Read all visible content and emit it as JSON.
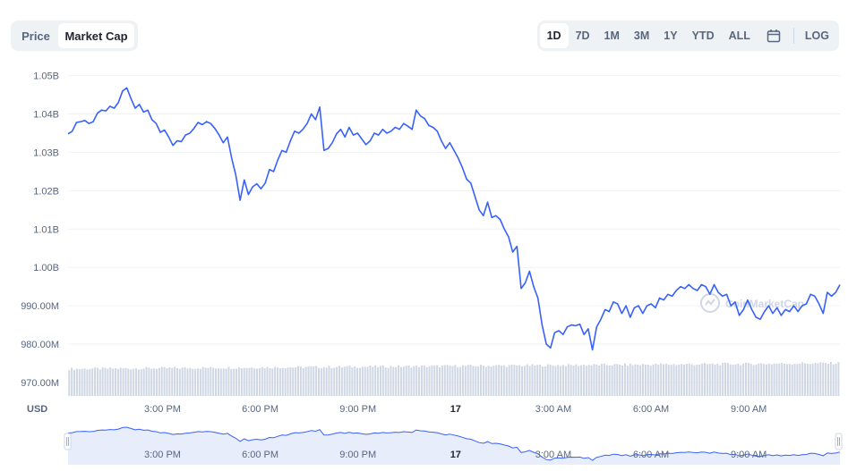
{
  "toggle": {
    "price_label": "Price",
    "market_cap_label": "Market Cap",
    "active": "Market Cap"
  },
  "ranges": [
    "1D",
    "7D",
    "1M",
    "3M",
    "1Y",
    "YTD",
    "ALL"
  ],
  "active_range": "1D",
  "calendar_icon": "calendar-icon",
  "log_label": "LOG",
  "watermark": "CoinMarketCap",
  "colors": {
    "line": "#3861fb",
    "volume": "#cfd6e4",
    "grid": "#eff2f5",
    "nav_fill": "#e8edfb"
  },
  "chart_data": {
    "type": "line",
    "unit_label": "USD",
    "y_ticks": [
      "1.05B",
      "1.04B",
      "1.03B",
      "1.02B",
      "1.01B",
      "1.00B",
      "990.00M",
      "980.00M",
      "970.00M"
    ],
    "y_tick_values": [
      1050000000,
      1040000000,
      1030000000,
      1020000000,
      1010000000,
      1000000000,
      990000000,
      980000000,
      970000000
    ],
    "ylim": [
      966500000,
      1052000000
    ],
    "x_ticks": [
      "3:00 PM",
      "6:00 PM",
      "9:00 PM",
      "17",
      "3:00 AM",
      "6:00 AM",
      "9:00 AM"
    ],
    "x_tick_hours": [
      15,
      18,
      21,
      24,
      27,
      30,
      33
    ],
    "bold_tick": "17",
    "xlim_hours": [
      12.1,
      35.8
    ],
    "series": [
      {
        "values": [
          1034.8,
          1035.5,
          1037.8,
          1038.0,
          1038.3,
          1037.5,
          1038.0,
          1040.2,
          1041.0,
          1040.8,
          1042.0,
          1041.5,
          1043.0,
          1046.0,
          1046.8,
          1044.0,
          1041.5,
          1042.5,
          1040.5,
          1041.0,
          1038.5,
          1037.5,
          1035.2,
          1035.8,
          1034.0,
          1031.8,
          1033.0,
          1032.8,
          1034.5,
          1035.0,
          1036.2,
          1037.8,
          1037.2,
          1038.0,
          1037.5,
          1036.2,
          1034.5,
          1032.5,
          1034.0,
          1028.5,
          1024.0,
          1017.5,
          1022.8,
          1019.0,
          1021.0,
          1021.8,
          1020.5,
          1022.0,
          1025.5,
          1025.0,
          1028.0,
          1030.5,
          1030.0,
          1033.0,
          1035.5,
          1035.0,
          1036.0,
          1037.5,
          1040.0,
          1038.5,
          1041.8,
          1030.5,
          1031.0,
          1032.5,
          1034.8,
          1036.0,
          1034.0,
          1036.5,
          1034.5,
          1035.0,
          1033.5,
          1032.0,
          1033.0,
          1035.0,
          1034.5,
          1036.0,
          1035.0,
          1035.5,
          1036.5,
          1036.0,
          1037.5,
          1036.8,
          1036.0,
          1041.0,
          1039.5,
          1038.8,
          1037.0,
          1036.5,
          1035.5,
          1033.0,
          1031.0,
          1032.5,
          1030.5,
          1028.5,
          1026.0,
          1023.0,
          1022.0,
          1018.5,
          1015.0,
          1013.5,
          1017.0,
          1013.0,
          1013.5,
          1012.5,
          1010.0,
          1008.0,
          1004.0,
          1005.5,
          994.5,
          996.0,
          999.0,
          995.0,
          992.0,
          985.0,
          980.0,
          979.0,
          983.0,
          983.5,
          982.5,
          984.5,
          985.0,
          984.8,
          985.2,
          982.5,
          984.0,
          978.5,
          984.5,
          986.5,
          989.0,
          988.5,
          991.0,
          990.5,
          988.0,
          990.0,
          987.0,
          989.5,
          990.0,
          988.0,
          990.0,
          990.5,
          989.5,
          992.0,
          991.5,
          993.0,
          992.5,
          994.0,
          995.0,
          994.5,
          995.5,
          994.5,
          994.0,
          995.5,
          995.0,
          993.0,
          995.5,
          993.5,
          992.5,
          993.0,
          990.0,
          991.0,
          987.5,
          989.0,
          991.5,
          989.0,
          987.0,
          986.5,
          988.5,
          990.0,
          988.0,
          989.5,
          987.5,
          989.0,
          988.5,
          990.0,
          988.5,
          990.0,
          990.5,
          993.0,
          992.5,
          990.5,
          988.0,
          993.5,
          992.5,
          993.5,
          995.5
        ]
      }
    ],
    "volume": {
      "range_pct": [
        6,
        11
      ]
    }
  }
}
